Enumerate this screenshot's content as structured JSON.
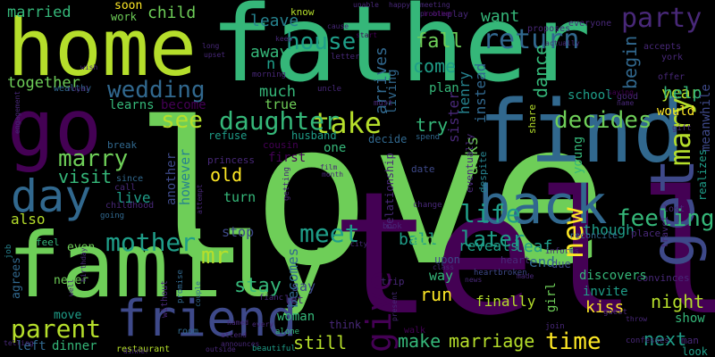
{
  "palette": {
    "background": "#000000",
    "dark_purple": "#440154",
    "indigo": "#482878",
    "slate_blue": "#3e4989",
    "steel_blue": "#31688e",
    "teal": "#26828e",
    "sea_green": "#1f9e89",
    "green": "#35b779",
    "lime": "#6ece58",
    "yellow_green": "#b5de2b",
    "yellow": "#fde725"
  },
  "words": [
    "love",
    "tell",
    "father",
    "family",
    "home",
    "go",
    "find",
    "friend",
    "back",
    "day",
    "get",
    "mother",
    "wedding",
    "house",
    "return",
    "party",
    "new",
    "life",
    "take",
    "marry",
    "mary",
    "give",
    "see",
    "daughter",
    "parent",
    "meet",
    "time",
    "later",
    "decides",
    "feeling",
    "married",
    "child",
    "soon",
    "work",
    "leave",
    "away",
    "fall",
    "want",
    "come",
    "year",
    "together",
    "n",
    "begin",
    "help",
    "become",
    "learns",
    "wealthy",
    "much",
    "true",
    "plan",
    "dance",
    "school",
    "henry",
    "instead",
    "living",
    "arrives",
    "visit",
    "marriage",
    "make",
    "still",
    "next",
    "night",
    "kiss",
    "run",
    "try",
    "asks",
    "way",
    "finally",
    "stay",
    "mr",
    "old",
    "however",
    "another",
    "also",
    "live",
    "stop",
    "turn",
    "ball",
    "end",
    "leaf",
    "becomes",
    "invite",
    "girl",
    "though",
    "young",
    "reveals",
    "son",
    "say",
    "woman",
    "show",
    "left",
    "dinner",
    "restaurant",
    "room",
    "alone",
    "beautiful",
    "never",
    "even",
    "agrees",
    "move",
    "feel",
    "job",
    "going",
    "childhood",
    "call",
    "since",
    "break",
    "refuse",
    "husband",
    "cousin",
    "one",
    "first",
    "sister",
    "share",
    "spend",
    "decide",
    "date",
    "eventually",
    "despite",
    "relationship",
    "problem",
    "letter",
    "unable",
    "happy",
    "meeting",
    "play",
    "brother",
    "proposes",
    "actually",
    "everyone",
    "accepts",
    "york",
    "offer",
    "meanwhile",
    "would",
    "gift",
    "good",
    "name",
    "saying",
    "realizes",
    "lost",
    "place",
    "reconcile",
    "informs",
    "travel",
    "convinces",
    "discovers",
    "due",
    "upon",
    "heart",
    "heartbroken",
    "made",
    "class",
    "news",
    "guest",
    "throw",
    "join",
    "confesses",
    "look",
    "man",
    "know",
    "keep",
    "cause",
    "upset",
    "long",
    "wish",
    "royal",
    "engagement",
    "morning",
    "uncle",
    "must",
    "start",
    "every",
    "princess",
    "attempt",
    "birthday",
    "well",
    "telling",
    "without",
    "promise",
    "couple",
    "fianc",
    "named",
    "attend",
    "outside",
    "announces",
    "walk",
    "let",
    "think",
    "trip",
    "present",
    "film",
    "month",
    "city",
    "book",
    "change",
    "getting",
    "dinner"
  ]
}
